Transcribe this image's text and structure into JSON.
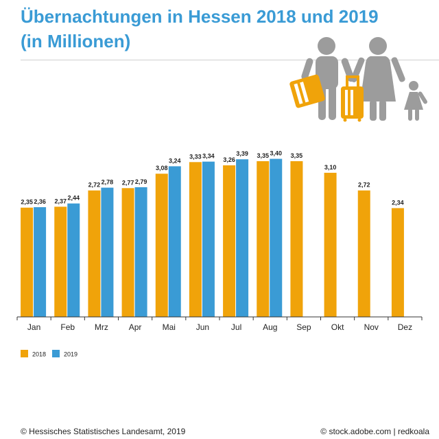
{
  "title": {
    "line1": "Übernachtungen in Hessen 2018 und 2019",
    "line2": "(in Millionen)"
  },
  "colors": {
    "title": "#3a9bd5",
    "series_2018": "#f0a30a",
    "series_2019": "#3a9bd5",
    "icon_grey": "#9c9c9c"
  },
  "illustration": {
    "icon": "family-travel-luggage-icon"
  },
  "chart_data": {
    "type": "bar",
    "categories": [
      "Jan",
      "Feb",
      "Mrz",
      "Apr",
      "Mai",
      "Jun",
      "Jul",
      "Aug",
      "Sep",
      "Okt",
      "Nov",
      "Dez"
    ],
    "series": [
      {
        "name": "2018",
        "color": "#f0a30a",
        "values": [
          2.35,
          2.37,
          2.72,
          2.77,
          3.08,
          3.33,
          3.26,
          3.35,
          3.35,
          3.1,
          2.72,
          2.34
        ]
      },
      {
        "name": "2019",
        "color": "#3a9bd5",
        "values": [
          2.36,
          2.44,
          2.78,
          2.79,
          3.24,
          3.34,
          3.39,
          3.4,
          null,
          null,
          null,
          null
        ]
      }
    ],
    "data_labels": {
      "2018": [
        "2,35",
        "2,37",
        "2,72",
        "2,77",
        "3,08",
        "3,33",
        "3,26",
        "3,35",
        "3,35",
        "3,10",
        "2,72",
        "2,34"
      ],
      "2019": [
        "2,36",
        "2,44",
        "2,78",
        "2,79",
        "3,24",
        "3,34",
        "3,39",
        "3,40"
      ]
    },
    "ylim": [
      0,
      3.6
    ],
    "grid": false,
    "legend_position": "bottom-left",
    "legend": [
      "2018",
      "2019"
    ]
  },
  "footer": {
    "source": "© Hessisches Statistisches Landesamt, 2019",
    "credit": "© stock.adobe.com | redkoala"
  }
}
